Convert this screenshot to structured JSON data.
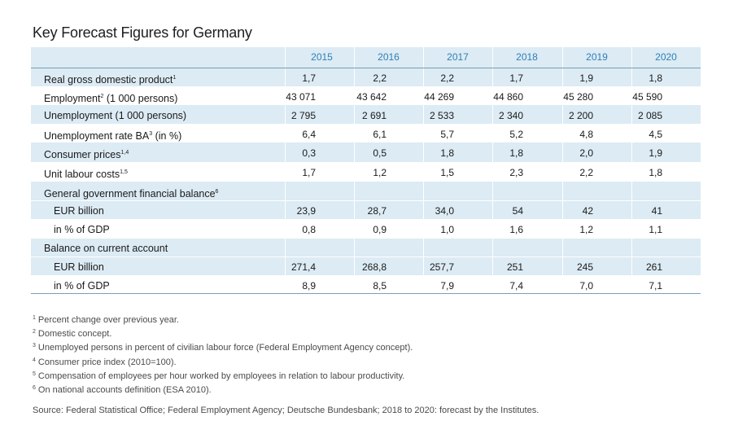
{
  "title": "Key Forecast Figures for Germany",
  "years": [
    "2015",
    "2016",
    "2017",
    "2018",
    "2019",
    "2020"
  ],
  "rows": [
    {
      "label": "Real gross domestic product",
      "sup": "1",
      "indent": false,
      "values": [
        "1,7",
        "2,2",
        "2,2",
        "1,7",
        "1,9",
        "1,8"
      ]
    },
    {
      "label": "Employment",
      "sup": "2",
      "suffix": " (1 000 persons)",
      "indent": false,
      "values": [
        "43 071",
        "43 642",
        "44 269",
        "44 860",
        "45 280",
        "45 590"
      ]
    },
    {
      "label": "Unemployment (1 000 persons)",
      "sup": "",
      "indent": false,
      "values": [
        "2 795",
        "2 691",
        "2 533",
        "2 340",
        "2 200",
        "2 085"
      ]
    },
    {
      "label": "Unemployment rate BA",
      "sup": "3",
      "suffix": " (in %)",
      "indent": false,
      "values": [
        "6,4",
        "6,1",
        "5,7",
        "5,2",
        "4,8",
        "4,5"
      ]
    },
    {
      "label": "Consumer prices",
      "sup": "1,4",
      "indent": false,
      "values": [
        "0,3",
        "0,5",
        "1,8",
        "1,8",
        "2,0",
        "1,9"
      ]
    },
    {
      "label": "Unit labour costs",
      "sup": "1,5",
      "indent": false,
      "values": [
        "1,7",
        "1,2",
        "1,5",
        "2,3",
        "2,2",
        "1,8"
      ]
    },
    {
      "label": "General government financial balance",
      "sup": "6",
      "indent": false,
      "values": []
    },
    {
      "label": "EUR billion",
      "sup": "",
      "indent": true,
      "values": [
        "23,9",
        "28,7",
        "34,0",
        "54",
        "42",
        "41"
      ]
    },
    {
      "label": "in % of GDP",
      "sup": "",
      "indent": true,
      "values": [
        "0,8",
        "0,9",
        "1,0",
        "1,6",
        "1,2",
        "1,1"
      ]
    },
    {
      "label": "Balance on current account",
      "sup": "",
      "indent": false,
      "values": []
    },
    {
      "label": "EUR billion",
      "sup": "",
      "indent": true,
      "values": [
        "271,4",
        "268,8",
        "257,7",
        "251",
        "245",
        "261"
      ]
    },
    {
      "label": "in % of GDP",
      "sup": "",
      "indent": true,
      "values": [
        "8,9",
        "8,5",
        "7,9",
        "7,4",
        "7,0",
        "7,1"
      ]
    }
  ],
  "footnotes": [
    {
      "num": "1",
      "text": "Percent change over previous year."
    },
    {
      "num": "2",
      "text": "Domestic concept."
    },
    {
      "num": "3",
      "text": "Unemployed persons in percent of civilian labour force (Federal Employment Agency concept)."
    },
    {
      "num": "4",
      "text": "Consumer price index (2010=100)."
    },
    {
      "num": "5",
      "text": "Compensation of employees per hour worked by employees in relation to labour productivity."
    },
    {
      "num": "6",
      "text": "On national accounts definition (ESA 2010)."
    }
  ],
  "source": "Source: Federal Statistical Office; Federal Employment Agency; Deutsche Bundesbank; 2018 to 2020: forecast by the Institutes.",
  "colors": {
    "band": "#dcebf4",
    "year_text": "#2f7fb6"
  }
}
